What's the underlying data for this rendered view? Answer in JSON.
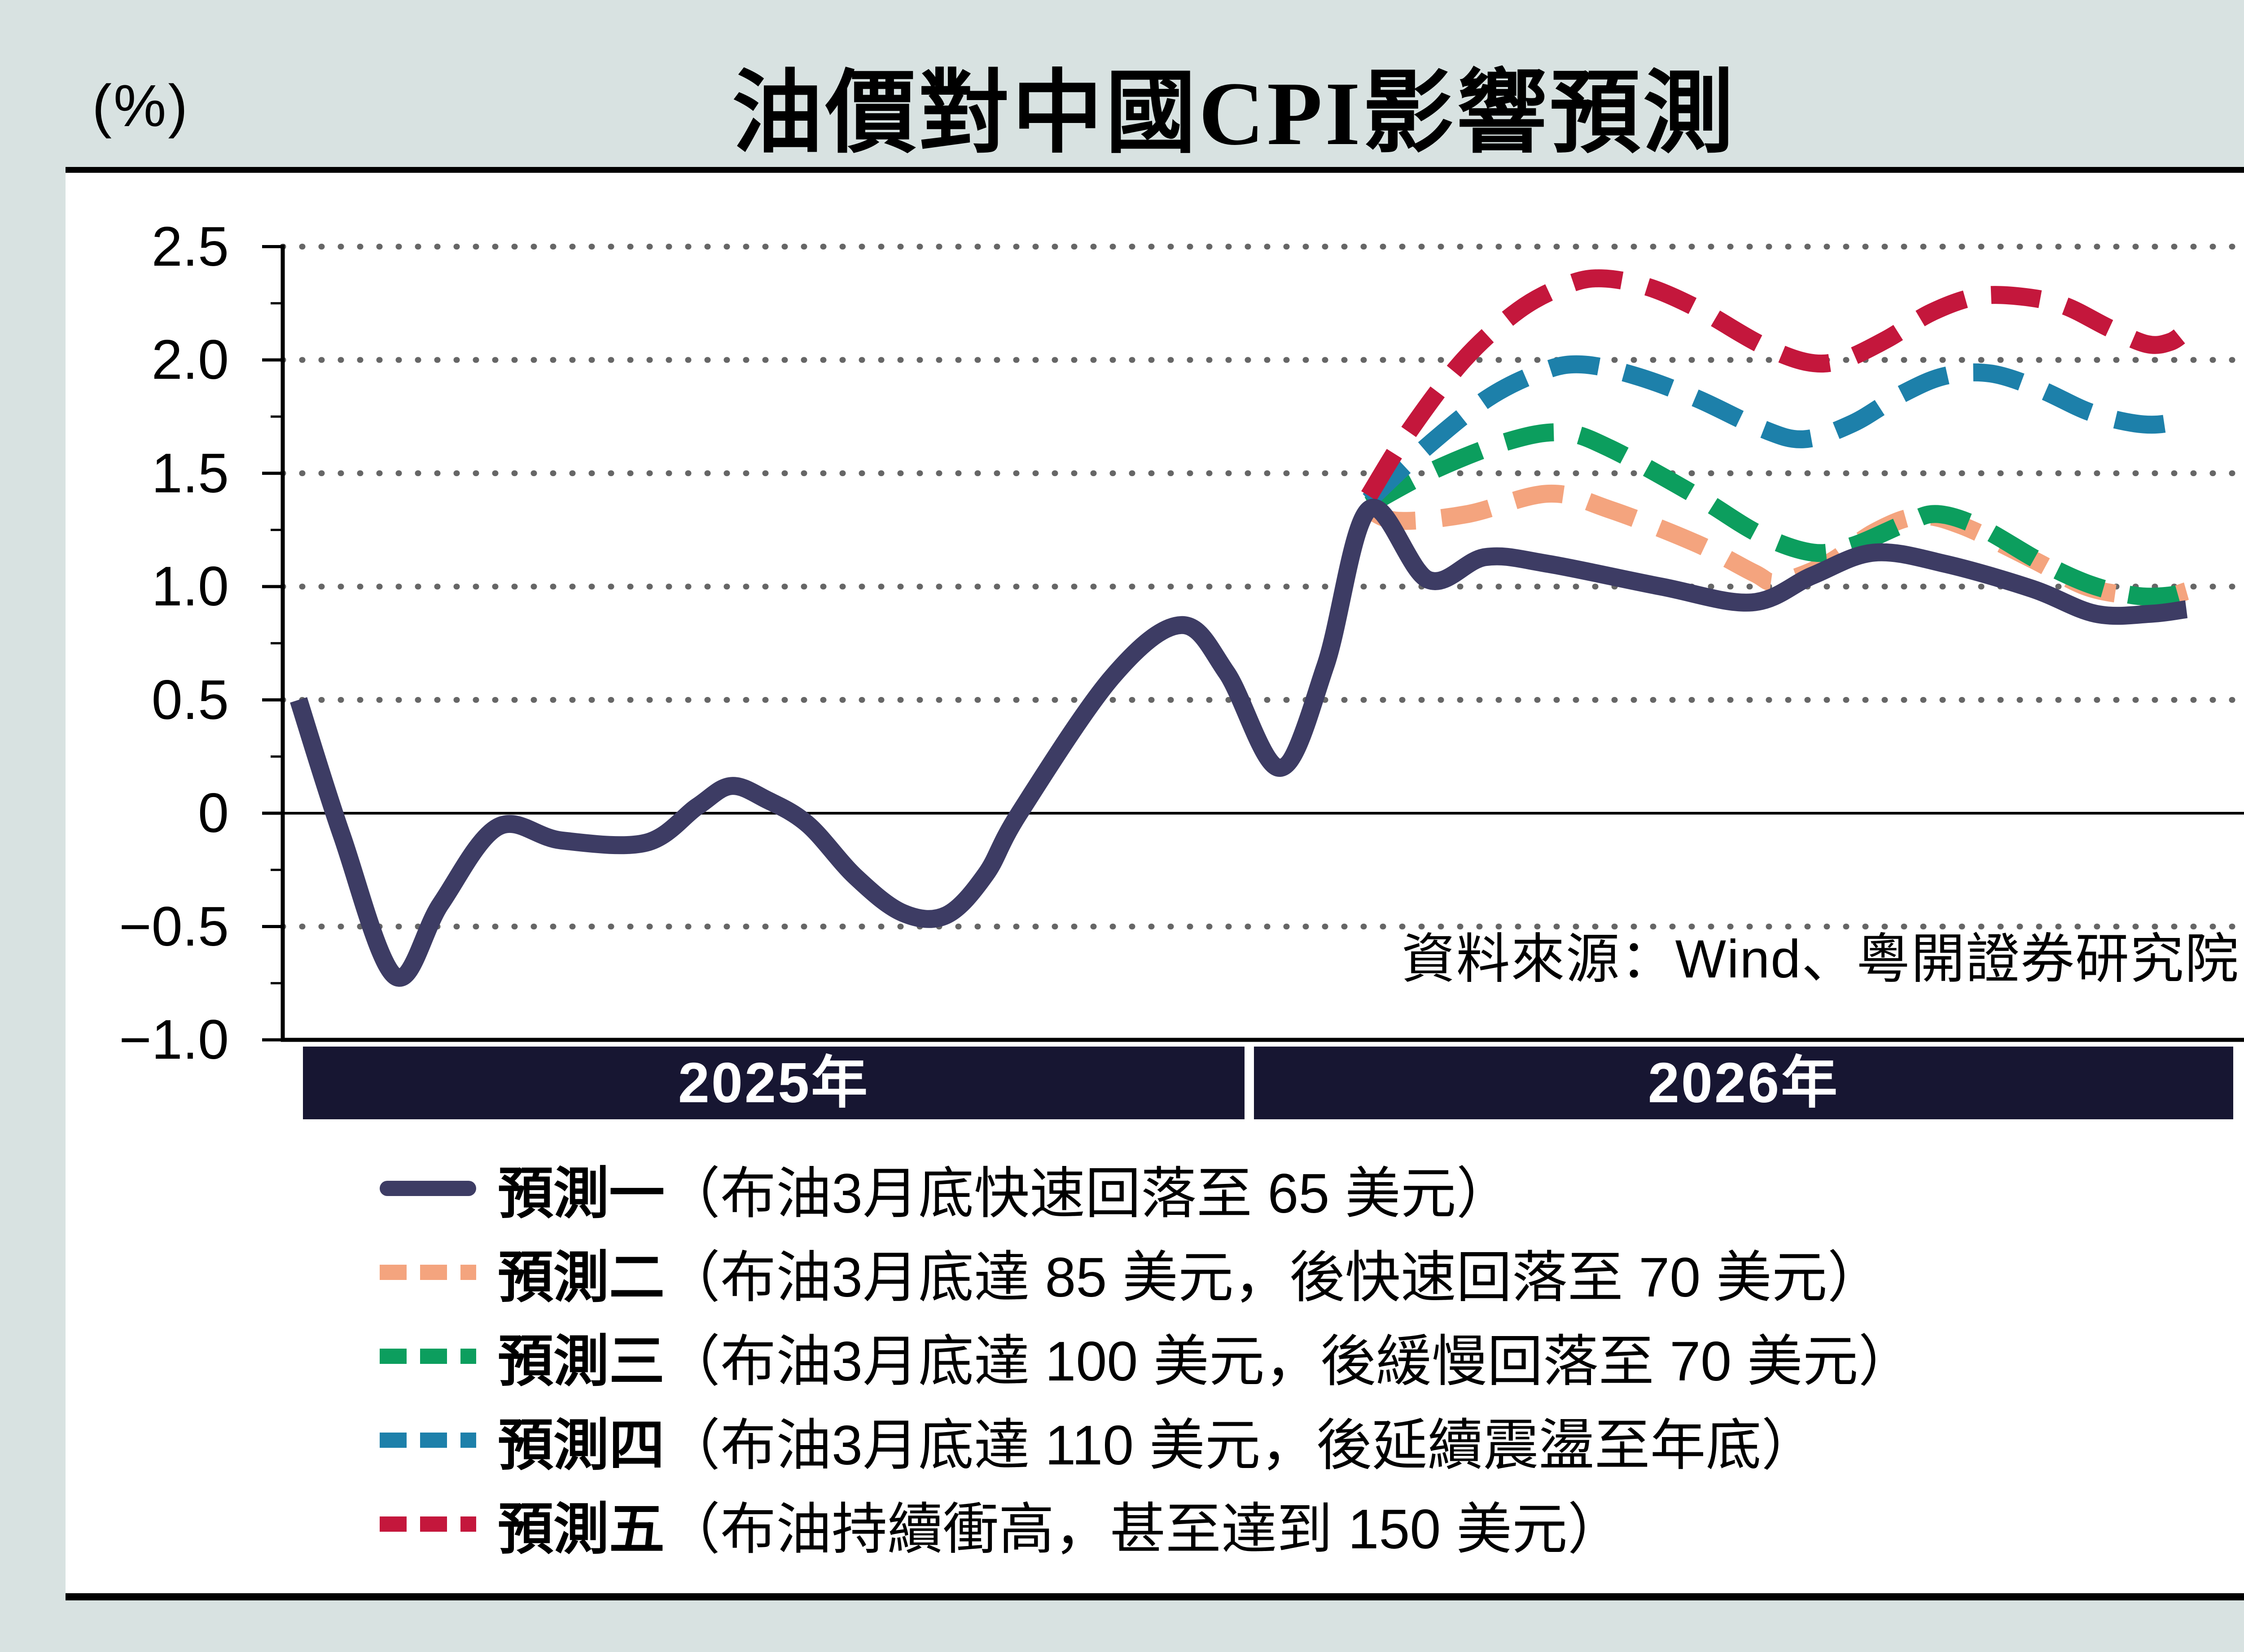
{
  "header": {
    "title": "油價對中國CPI影響預測",
    "unit_label": "(%)"
  },
  "chart_data": {
    "type": "line",
    "title": "油價對中國CPI影響預測",
    "ylabel": "(%)",
    "xlabel": "",
    "ylim": [
      -1.0,
      2.5
    ],
    "grid": "dotted horizontal gridlines at 0.5 steps, solid line at 0",
    "legend_position": "below chart",
    "source_note": "資料來源：Wind、粵開證券研究院",
    "x_bands": [
      {
        "label": "2025年"
      },
      {
        "label": "2026年"
      }
    ],
    "yticks": [
      {
        "value": 2.5,
        "label": "2.5"
      },
      {
        "value": 2.0,
        "label": "2.0"
      },
      {
        "value": 1.5,
        "label": "1.5"
      },
      {
        "value": 1.0,
        "label": "1.0"
      },
      {
        "value": 0.5,
        "label": "0.5"
      },
      {
        "value": 0,
        "label": "0"
      },
      {
        "value": -0.5,
        "label": "−0.5"
      },
      {
        "value": -1.0,
        "label": "−1.0"
      }
    ],
    "dotted_gridlines": [
      2.5,
      2.0,
      1.5,
      1.0,
      0.5,
      -0.5
    ],
    "zero_line": 0,
    "colors": {
      "forecast1": "#3d3c64",
      "forecast2": "#f4a47e",
      "forecast3": "#0c9e5e",
      "forecast4": "#1d80aa",
      "forecast5": "#c4173c",
      "gridline": "#666666",
      "band_bg": "#171632",
      "page_bg": "#d8e2e1"
    },
    "series": [
      {
        "name": "預測一",
        "desc": "（布油3月底快速回落至 65 美元）",
        "color": "#3d3c64",
        "dash": "solid",
        "z": 5,
        "points": [
          [
            0.008,
            0.5
          ],
          [
            0.03,
            -0.1
          ],
          [
            0.057,
            -0.72
          ],
          [
            0.08,
            -0.4
          ],
          [
            0.109,
            -0.06
          ],
          [
            0.141,
            -0.12
          ],
          [
            0.184,
            -0.13
          ],
          [
            0.21,
            0.03
          ],
          [
            0.227,
            0.12
          ],
          [
            0.245,
            0.06
          ],
          [
            0.266,
            -0.05
          ],
          [
            0.29,
            -0.28
          ],
          [
            0.314,
            -0.44
          ],
          [
            0.336,
            -0.45
          ],
          [
            0.356,
            -0.27
          ],
          [
            0.373,
            0.0
          ],
          [
            0.42,
            0.6
          ],
          [
            0.455,
            0.83
          ],
          [
            0.478,
            0.62
          ],
          [
            0.505,
            0.2
          ],
          [
            0.528,
            0.65
          ],
          [
            0.55,
            1.34
          ],
          [
            0.58,
            1.03
          ],
          [
            0.609,
            1.13
          ],
          [
            0.641,
            1.1
          ],
          [
            0.698,
            1.0
          ],
          [
            0.744,
            0.93
          ],
          [
            0.775,
            1.05
          ],
          [
            0.806,
            1.15
          ],
          [
            0.842,
            1.1
          ],
          [
            0.886,
            0.99
          ],
          [
            0.918,
            0.88
          ],
          [
            0.946,
            0.88
          ],
          [
            0.964,
            0.9
          ]
        ]
      },
      {
        "name": "預測二",
        "desc": "（布油3月底達 85 美元，後快速回落至 70 美元）",
        "color": "#f4a47e",
        "dash": "dashed",
        "z": 1,
        "points": [
          [
            0.55,
            1.34
          ],
          [
            0.565,
            1.29
          ],
          [
            0.6,
            1.32
          ],
          [
            0.641,
            1.41
          ],
          [
            0.672,
            1.34
          ],
          [
            0.716,
            1.19
          ],
          [
            0.745,
            1.06
          ],
          [
            0.757,
            1.02
          ],
          [
            0.782,
            1.1
          ],
          [
            0.806,
            1.24
          ],
          [
            0.828,
            1.31
          ],
          [
            0.85,
            1.27
          ],
          [
            0.886,
            1.12
          ],
          [
            0.913,
            1.0
          ],
          [
            0.936,
            0.96
          ],
          [
            0.952,
            0.95
          ],
          [
            0.964,
            0.98
          ]
        ]
      },
      {
        "name": "預測三",
        "desc": "（布油3月底達 100 美元，後緩慢回落至 70 美元）",
        "color": "#0c9e5e",
        "dash": "dashed",
        "z": 2,
        "points": [
          [
            0.55,
            1.36
          ],
          [
            0.582,
            1.51
          ],
          [
            0.62,
            1.64
          ],
          [
            0.648,
            1.68
          ],
          [
            0.672,
            1.61
          ],
          [
            0.716,
            1.4
          ],
          [
            0.748,
            1.23
          ],
          [
            0.775,
            1.15
          ],
          [
            0.795,
            1.18
          ],
          [
            0.822,
            1.28
          ],
          [
            0.838,
            1.32
          ],
          [
            0.86,
            1.26
          ],
          [
            0.89,
            1.11
          ],
          [
            0.915,
            1.01
          ],
          [
            0.938,
            0.96
          ],
          [
            0.955,
            0.96
          ],
          [
            0.964,
            0.98
          ]
        ]
      },
      {
        "name": "預測四",
        "desc": "（布油3月底達 110 美元，後延續震盪至年底）",
        "color": "#1d80aa",
        "dash": "dashed",
        "z": 3,
        "points": [
          [
            0.55,
            1.38
          ],
          [
            0.577,
            1.6
          ],
          [
            0.61,
            1.83
          ],
          [
            0.638,
            1.95
          ],
          [
            0.658,
            1.98
          ],
          [
            0.685,
            1.93
          ],
          [
            0.716,
            1.83
          ],
          [
            0.748,
            1.7
          ],
          [
            0.77,
            1.65
          ],
          [
            0.795,
            1.72
          ],
          [
            0.82,
            1.85
          ],
          [
            0.842,
            1.93
          ],
          [
            0.865,
            1.94
          ],
          [
            0.89,
            1.87
          ],
          [
            0.915,
            1.77
          ],
          [
            0.938,
            1.72
          ],
          [
            0.954,
            1.72
          ],
          [
            0.964,
            1.76
          ]
        ]
      },
      {
        "name": "預測五",
        "desc": "（布油持續衝高，甚至達到 150 美元）",
        "color": "#c4173c",
        "dash": "dashed",
        "z": 4,
        "points": [
          [
            0.55,
            1.4
          ],
          [
            0.57,
            1.68
          ],
          [
            0.598,
            2.0
          ],
          [
            0.626,
            2.22
          ],
          [
            0.65,
            2.33
          ],
          [
            0.668,
            2.36
          ],
          [
            0.692,
            2.32
          ],
          [
            0.718,
            2.22
          ],
          [
            0.748,
            2.07
          ],
          [
            0.772,
            1.99
          ],
          [
            0.79,
            2.0
          ],
          [
            0.812,
            2.09
          ],
          [
            0.835,
            2.21
          ],
          [
            0.858,
            2.28
          ],
          [
            0.88,
            2.28
          ],
          [
            0.902,
            2.24
          ],
          [
            0.925,
            2.14
          ],
          [
            0.944,
            2.07
          ],
          [
            0.956,
            2.08
          ],
          [
            0.964,
            2.13
          ]
        ]
      }
    ]
  }
}
